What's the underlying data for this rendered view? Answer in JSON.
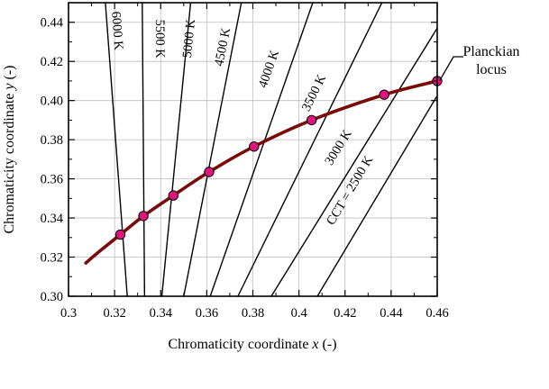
{
  "chart_data": {
    "type": "line",
    "xlabel": {
      "prefix": "Chromaticity coordinate ",
      "var": "x",
      "suffix": "  (-)"
    },
    "ylabel": {
      "prefix": "Chromaticity coordinate ",
      "var": "y",
      "suffix": "  (-)"
    },
    "xlim": [
      0.3,
      0.46
    ],
    "ylim": [
      0.3,
      0.45
    ],
    "grid": true,
    "x_ticks": [
      {
        "v": 0.3,
        "label": "0.3"
      },
      {
        "v": 0.32,
        "label": "0.32"
      },
      {
        "v": 0.34,
        "label": "0.34"
      },
      {
        "v": 0.36,
        "label": "0.36"
      },
      {
        "v": 0.38,
        "label": "0.38"
      },
      {
        "v": 0.4,
        "label": "0.4"
      },
      {
        "v": 0.42,
        "label": "0.42"
      },
      {
        "v": 0.44,
        "label": "0.44"
      },
      {
        "v": 0.46,
        "label": "0.46"
      }
    ],
    "y_ticks": [
      {
        "v": 0.3,
        "label": "0.30"
      },
      {
        "v": 0.32,
        "label": "0.32"
      },
      {
        "v": 0.34,
        "label": "0.34"
      },
      {
        "v": 0.36,
        "label": "0.36"
      },
      {
        "v": 0.38,
        "label": "0.38"
      },
      {
        "v": 0.4,
        "label": "0.40"
      },
      {
        "v": 0.42,
        "label": "0.42"
      },
      {
        "v": 0.44,
        "label": "0.44"
      }
    ],
    "planckian_locus": {
      "label_lines": [
        "Planckian",
        "locus"
      ],
      "color": "#7a0a0a",
      "curve": [
        [
          0.3075,
          0.317
        ],
        [
          0.314,
          0.3235
        ],
        [
          0.3225,
          0.3315
        ],
        [
          0.3325,
          0.341
        ],
        [
          0.3455,
          0.3515
        ],
        [
          0.361,
          0.3635
        ],
        [
          0.3805,
          0.3765
        ],
        [
          0.4055,
          0.39
        ],
        [
          0.437,
          0.403
        ],
        [
          0.46,
          0.41
        ]
      ],
      "points": [
        {
          "cct": "6000 K",
          "x": 0.3225,
          "y": 0.3315
        },
        {
          "cct": "5500 K",
          "x": 0.3325,
          "y": 0.341
        },
        {
          "cct": "5000 K",
          "x": 0.3455,
          "y": 0.3515
        },
        {
          "cct": "4500 K",
          "x": 0.361,
          "y": 0.3635
        },
        {
          "cct": "4000 K",
          "x": 0.3805,
          "y": 0.3765
        },
        {
          "cct": "3500 K",
          "x": 0.4055,
          "y": 0.39
        },
        {
          "cct": "3000 K",
          "x": 0.437,
          "y": 0.403
        },
        {
          "cct": "2500 K",
          "x": 0.46,
          "y": 0.41
        }
      ],
      "marker_color": "#e0147a"
    },
    "isotemperature_lines": [
      {
        "label": "6000 K",
        "x1": 0.316,
        "y1": 0.45,
        "x2": 0.3255,
        "y2": 0.3,
        "label_x": 0.3195,
        "label_y": 0.4355
      },
      {
        "label": "5500 K",
        "x1": 0.332,
        "y1": 0.45,
        "x2": 0.333,
        "y2": 0.3,
        "label_x": 0.338,
        "label_y": 0.4315
      },
      {
        "label": "5000 K",
        "x1": 0.353,
        "y1": 0.45,
        "x2": 0.3405,
        "y2": 0.3,
        "label_x": 0.354,
        "label_y": 0.4315
      },
      {
        "label": "4500 K",
        "x1": 0.375,
        "y1": 0.45,
        "x2": 0.35,
        "y2": 0.3,
        "label_x": 0.3685,
        "label_y": 0.427
      },
      {
        "label": "4000 K",
        "x1": 0.406,
        "y1": 0.45,
        "x2": 0.3615,
        "y2": 0.3,
        "label_x": 0.3885,
        "label_y": 0.4155
      },
      {
        "label": "3500 K",
        "x1": 0.436,
        "y1": 0.45,
        "x2": 0.3735,
        "y2": 0.3,
        "label_x": 0.408,
        "label_y": 0.403
      },
      {
        "label": "3000 K",
        "x1": 0.46,
        "y1": 0.437,
        "x2": 0.388,
        "y2": 0.3,
        "label_x": 0.4185,
        "label_y": 0.375
      },
      {
        "label": "CCT = 2500 K",
        "x1": 0.46,
        "y1": 0.4025,
        "x2": 0.408,
        "y2": 0.3,
        "label_x": 0.4235,
        "label_y": 0.353
      }
    ]
  }
}
